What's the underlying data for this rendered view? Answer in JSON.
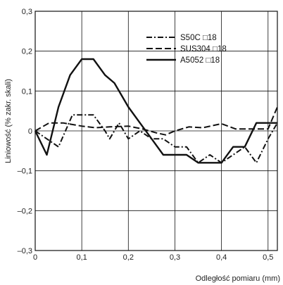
{
  "chart_data": {
    "type": "line",
    "title": "",
    "xlabel": "Odległość pomiaru (mm)",
    "ylabel": "Liniowość (% zakr. skali)",
    "xlim": [
      0,
      0.52
    ],
    "ylim": [
      -0.3,
      0.3
    ],
    "x_ticks": [
      0,
      0.1,
      0.2,
      0.3,
      0.4,
      0.5
    ],
    "x_tick_labels": [
      "0",
      "0,1",
      "0,2",
      "0,3",
      "0,4",
      "0,5"
    ],
    "y_ticks": [
      0.3,
      0.2,
      0.1,
      0,
      -0.1,
      -0.2,
      -0.3
    ],
    "y_tick_labels": [
      "0,3",
      "0,2",
      "0,1",
      "0",
      "–0,1",
      "–0,2",
      "–0,3"
    ],
    "grid": true,
    "legend_position": "top-right",
    "series": [
      {
        "name": "S50C □18",
        "style": "dashdot",
        "color": "#111111",
        "x": [
          0,
          0.025,
          0.05,
          0.08,
          0.1,
          0.125,
          0.15,
          0.16,
          0.18,
          0.2,
          0.225,
          0.25,
          0.275,
          0.3,
          0.325,
          0.35,
          0.375,
          0.4,
          0.425,
          0.45,
          0.475,
          0.5,
          0.52
        ],
        "y": [
          0,
          -0.02,
          -0.04,
          0.04,
          0.04,
          0.04,
          0.0,
          -0.02,
          0.02,
          -0.02,
          0.0,
          -0.02,
          -0.02,
          -0.04,
          -0.04,
          -0.08,
          -0.06,
          -0.08,
          -0.06,
          -0.04,
          -0.08,
          -0.02,
          0.02
        ]
      },
      {
        "name": "SUS304 □18",
        "style": "dashed",
        "color": "#111111",
        "x": [
          0,
          0.03,
          0.06,
          0.1,
          0.13,
          0.16,
          0.2,
          0.23,
          0.26,
          0.28,
          0.3,
          0.33,
          0.36,
          0.4,
          0.43,
          0.46,
          0.5,
          0.52
        ],
        "y": [
          0,
          0.02,
          0.02,
          0.012,
          0.008,
          0.01,
          0.012,
          0.005,
          -0.005,
          -0.01,
          0.0,
          0.01,
          0.008,
          0.018,
          0.005,
          0.005,
          0.005,
          0.06
        ]
      },
      {
        "name": "A5052 □18",
        "style": "solid",
        "color": "#111111",
        "x": [
          0,
          0.025,
          0.05,
          0.075,
          0.1,
          0.125,
          0.15,
          0.17,
          0.2,
          0.225,
          0.25,
          0.275,
          0.3,
          0.325,
          0.35,
          0.375,
          0.4,
          0.425,
          0.45,
          0.475,
          0.5,
          0.52
        ],
        "y": [
          0,
          -0.06,
          0.06,
          0.14,
          0.18,
          0.18,
          0.14,
          0.12,
          0.06,
          0.02,
          -0.02,
          -0.06,
          -0.06,
          -0.06,
          -0.08,
          -0.08,
          -0.08,
          -0.04,
          -0.04,
          0.02,
          0.02,
          0.02
        ]
      }
    ]
  }
}
